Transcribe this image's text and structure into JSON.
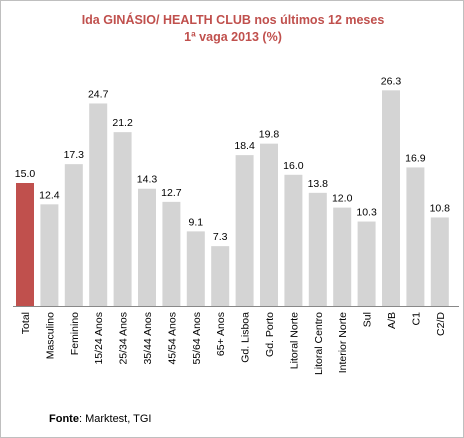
{
  "chart_data": {
    "type": "bar",
    "title": "Ida GINÁSIO/ HEALTH CLUB nos últimos 12 meses",
    "subtitle": "1ª vaga 2013  (%)",
    "categories": [
      "Total",
      "Masculino",
      "Feminino",
      "15/24 Anos",
      "25/34 Anos",
      "35/44 Anos",
      "45/54 Anos",
      "55/64 Anos",
      "65+ Anos",
      "Gd. Lisboa",
      "Gd. Porto",
      "Litoral Norte",
      "Litoral Centro",
      "Interior Norte",
      "Sul",
      "A/B",
      "C1",
      "C2/D"
    ],
    "values": [
      15.0,
      12.4,
      17.3,
      24.7,
      21.2,
      14.3,
      12.7,
      9.1,
      7.3,
      18.4,
      19.8,
      16.0,
      13.8,
      12.0,
      10.3,
      26.3,
      16.9,
      10.8
    ],
    "value_labels": [
      "15.0",
      "12.4",
      "17.3",
      "24.7",
      "21.2",
      "14.3",
      "12.7",
      "9.1",
      "7.3",
      "18.4",
      "19.8",
      "16.0",
      "13.8",
      "12.0",
      "10.3",
      "26.3",
      "16.9",
      "10.8"
    ],
    "ylim": [
      0,
      30
    ],
    "grid": false,
    "legend": "none",
    "colors": {
      "highlight": "#c0504d",
      "bar": "#d4d4d4",
      "title": "#c0504d",
      "axis": "#888888"
    },
    "highlight_index": 0
  },
  "source": {
    "label": "Fonte",
    "text": ": Marktest, TGI"
  }
}
